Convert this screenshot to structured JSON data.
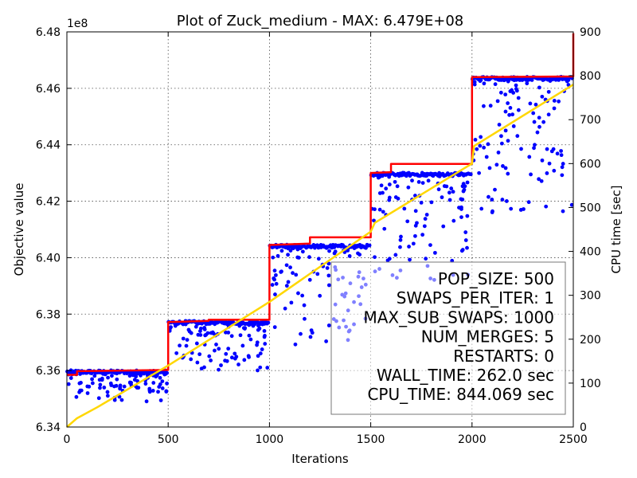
{
  "chart_data": {
    "type": "line",
    "title": "Plot of Zuck_medium - MAX: 6.479E+08",
    "xlabel": "Iterations",
    "ylabel": "Objective value",
    "y2label": "CPU time [sec]",
    "offset_text": "1e8",
    "xlim": [
      0,
      2500
    ],
    "ylim": [
      6.34,
      6.48
    ],
    "y2lim": [
      0,
      900
    ],
    "x_ticks": [
      0,
      500,
      1000,
      1500,
      2000,
      2500
    ],
    "y_ticks": [
      6.34,
      6.36,
      6.38,
      6.4,
      6.42,
      6.44,
      6.46,
      6.48
    ],
    "y_tick_labels": [
      "6.34",
      "6.36",
      "6.38",
      "6.40",
      "6.42",
      "6.44",
      "6.46",
      "6.48"
    ],
    "y2_ticks": [
      0,
      100,
      200,
      300,
      400,
      500,
      600,
      700,
      800,
      900
    ],
    "grid": true,
    "series": [
      {
        "kind": "line",
        "color": "#ff0000",
        "x": [
          0,
          50,
          50,
          500,
          500,
          700,
          700,
          1000,
          1000,
          1200,
          1200,
          1500,
          1500,
          1600,
          1600,
          2000,
          2000,
          2500,
          2500
        ],
        "y": [
          6.3585,
          6.3585,
          6.3598,
          6.3602,
          6.3772,
          6.3776,
          6.378,
          6.378,
          6.4045,
          6.405,
          6.4072,
          6.4072,
          6.43,
          6.4303,
          6.4332,
          6.4332,
          6.464,
          6.4642,
          6.4795
        ]
      },
      {
        "kind": "line",
        "axis": "right",
        "color": "#ffd700",
        "x": [
          0,
          50,
          150,
          500,
          1000,
          1500,
          1520,
          2000,
          2010,
          2500
        ],
        "y": [
          0,
          20,
          45,
          140,
          285,
          445,
          465,
          600,
          640,
          780
        ]
      },
      {
        "kind": "scatter",
        "color": "#0000ff",
        "plateau_x": [
          [
            0,
            500
          ],
          [
            500,
            1000
          ],
          [
            1000,
            1500
          ],
          [
            1500,
            2000
          ],
          [
            2000,
            2500
          ]
        ],
        "plateau_y": [
          6.3595,
          6.377,
          6.404,
          6.4295,
          6.4635
        ],
        "scatter_min": [
          6.349,
          6.36,
          6.369,
          6.39,
          6.416
        ]
      }
    ],
    "legend_placement": "lower-right",
    "annotations": [
      "POP_SIZE: 500",
      "SWAPS_PER_ITER: 1",
      "MAX_SUB_SWAPS: 1000",
      "NUM_MERGES: 5",
      "RESTARTS: 0",
      "WALL_TIME: 262.0 sec",
      "CPU_TIME: 844.069 sec"
    ]
  }
}
